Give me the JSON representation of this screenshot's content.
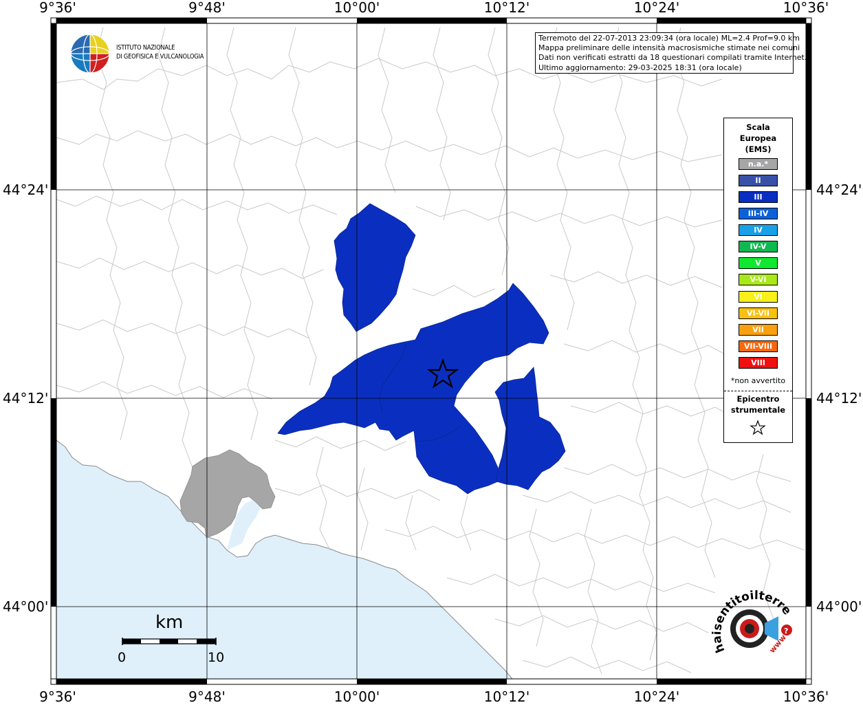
{
  "map": {
    "lon_labels": [
      "9°36'",
      "9°48'",
      "10°00'",
      "10°12'",
      "10°24'",
      "10°36'"
    ],
    "lat_labels": [
      "44°24'",
      "44°12'",
      "44°00'"
    ]
  },
  "header": {
    "logo_line1": "ISTITUTO NAZIONALE",
    "logo_line2": "DI GEOFISICA E VULCANOLOGIA"
  },
  "info": {
    "line1": "Terremoto del 22-07-2013 23:09:34 (ora locale) ML=2.4 Prof=9.0 km",
    "line2": "Mappa preliminare delle intensità macrosismiche stimate nei comuni",
    "line3": "Dati non verificati estratti da 18 questionari compilati tramite Internet.",
    "line4": "Ultimo aggiornamento: 29-03-2025 18:31 (ora locale)"
  },
  "legend": {
    "title_line1": "Scala",
    "title_line2": "Europea",
    "title_line3": "(EMS)",
    "items": [
      {
        "label": "n.a.*",
        "color": "#a6a6a6"
      },
      {
        "label": "II",
        "color": "#3850a8"
      },
      {
        "label": "III",
        "color": "#0a2fc0"
      },
      {
        "label": "III-IV",
        "color": "#0b62d8"
      },
      {
        "label": "IV",
        "color": "#18a0e8"
      },
      {
        "label": "IV-V",
        "color": "#10b850"
      },
      {
        "label": "V",
        "color": "#10e830"
      },
      {
        "label": "V-VI",
        "color": "#a8e818"
      },
      {
        "label": "VI",
        "color": "#f8f018"
      },
      {
        "label": "VI-VII",
        "color": "#f8c010"
      },
      {
        "label": "VII",
        "color": "#f8a010"
      },
      {
        "label": "VII-VIII",
        "color": "#f86810"
      },
      {
        "label": "VIII",
        "color": "#f01010"
      }
    ],
    "note": "*non avvertito",
    "epicenter_line1": "Epicentro",
    "epicenter_line2": "strumentale"
  },
  "scale": {
    "unit": "km",
    "start": "0",
    "end": "10"
  },
  "colors": {
    "sea": "#dff0fb",
    "intensity_III": "#0a2fc0",
    "not_available": "#a6a6a6",
    "boundaries": "#c8c8c8"
  },
  "watermark": {
    "text": "haisentitoilterremoto.it",
    "url": "www"
  }
}
